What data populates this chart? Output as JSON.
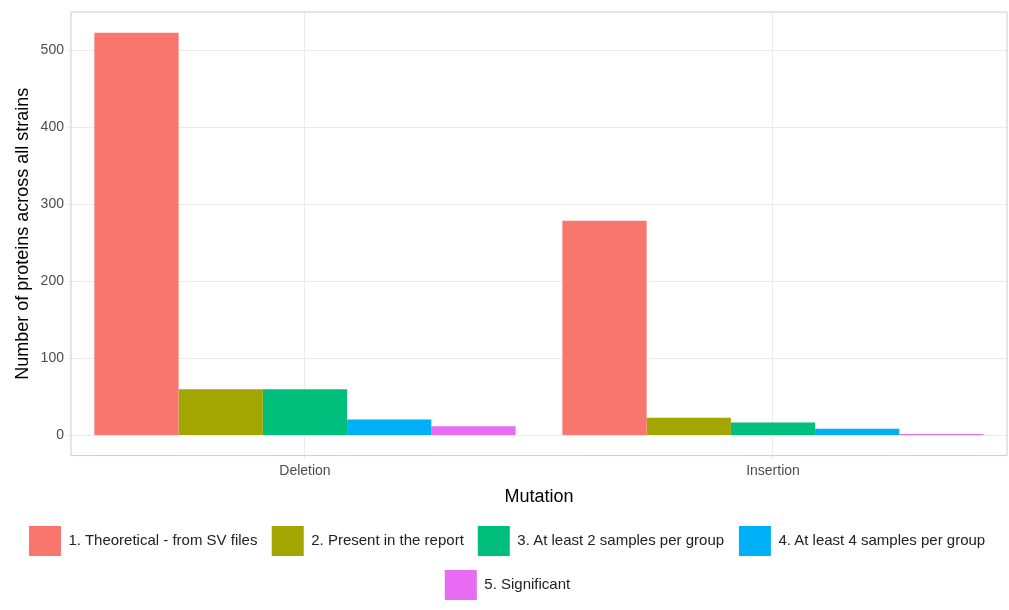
{
  "chart_data": {
    "type": "bar",
    "xlabel": "Mutation",
    "ylabel": "Number of proteins across all strains",
    "categories": [
      "Deletion",
      "Insertion"
    ],
    "series": [
      {
        "name": "1. Theoretical - from SV files",
        "color": "#f8766d",
        "values": [
          523,
          279
        ]
      },
      {
        "name": "2. Present in the report",
        "color": "#a3a500",
        "values": [
          60,
          23
        ]
      },
      {
        "name": "3. At least 2 samples per group",
        "color": "#00bf7d",
        "values": [
          60,
          17
        ]
      },
      {
        "name": "4. At least 4 samples per group",
        "color": "#00b0f6",
        "values": [
          21,
          9
        ]
      },
      {
        "name": "5. Significant",
        "color": "#e76bf3",
        "values": [
          12,
          2
        ]
      }
    ],
    "ylim": [
      -26,
      550
    ],
    "yticks": [
      0,
      100,
      200,
      300,
      400,
      500
    ],
    "grid": true,
    "legend": "bottom"
  }
}
